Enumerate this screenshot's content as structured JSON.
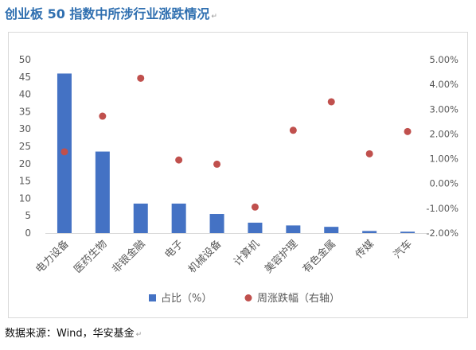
{
  "title": "创业板 50 指数中所涉行业涨跌情况",
  "source": "数据来源：Wind，华安基金",
  "colors": {
    "bar": "#4472c4",
    "dot": "#c0504d",
    "title": "#2f6fb0"
  },
  "chart_data": {
    "type": "bar",
    "categories": [
      "电力设备",
      "医药生物",
      "非银金融",
      "电子",
      "机械设备",
      "计算机",
      "美容护理",
      "有色金属",
      "传媒",
      "汽车"
    ],
    "series": [
      {
        "name": "占比（%）",
        "type": "bar",
        "axis": "left",
        "values": [
          46.0,
          23.5,
          8.5,
          8.5,
          5.5,
          3.0,
          2.2,
          1.8,
          0.6,
          0.4
        ]
      },
      {
        "name": "周涨跌幅（右轴）",
        "type": "scatter",
        "axis": "right",
        "values": [
          1.28,
          2.72,
          4.25,
          0.95,
          0.78,
          -0.95,
          2.15,
          3.3,
          1.2,
          2.1
        ]
      }
    ],
    "left_axis": {
      "ylim": [
        0,
        50
      ],
      "ticks": [
        "0",
        "5",
        "10",
        "15",
        "20",
        "25",
        "30",
        "35",
        "40",
        "45",
        "50"
      ]
    },
    "right_axis": {
      "ylim": [
        -2,
        5
      ],
      "ticks": [
        "-2.00%",
        "-1.00%",
        "0.00%",
        "1.00%",
        "2.00%",
        "3.00%",
        "4.00%",
        "5.00%"
      ]
    },
    "grid": false,
    "legend_position": "bottom"
  }
}
